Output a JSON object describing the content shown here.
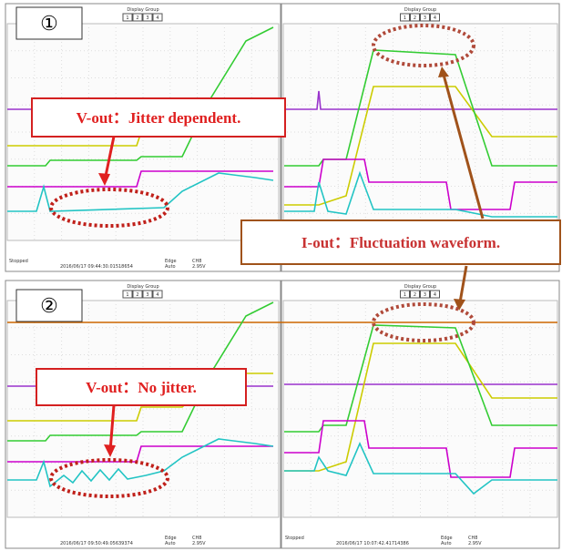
{
  "panel_1": {
    "number": "①",
    "vout_note": "V-out：Jitter dependent.",
    "left": {
      "menu": "Display Group",
      "status": "Stopped",
      "timestamp": "2016/06/17 09:44:30.01518654",
      "trigger": "Edge",
      "mode": "Auto",
      "channel": "CH8",
      "level": "2.95V"
    },
    "right": {
      "menu": "Display Group"
    }
  },
  "iout_note": "I-out：Fluctuation waveform.",
  "panel_2": {
    "number": "②",
    "vout_note": "V-out：No jitter.",
    "left": {
      "menu": "Display Group",
      "timestamp": "2016/06/17 09:50:49.05639374",
      "trigger": "Edge",
      "mode": "Auto",
      "channel": "CH8",
      "level": "2.95V"
    },
    "right": {
      "menu": "Display Group",
      "status": "Stopped",
      "timestamp": "2016/06/17 10:07:42.41714386",
      "trigger": "Edge",
      "mode": "Auto",
      "channel": "CH8",
      "level": "2.95V"
    }
  },
  "buttons": [
    "1",
    "2",
    "3",
    "4"
  ]
}
